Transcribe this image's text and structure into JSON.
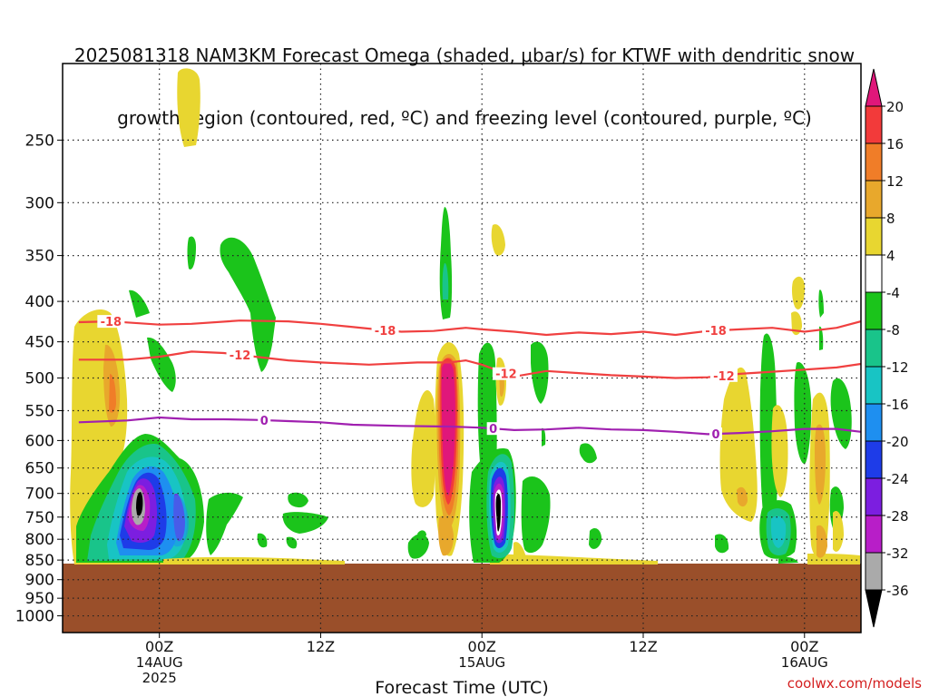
{
  "title_line1": "2025081318 NAM3KM Forecast Omega (shaded, μbar/s) for KTWF with dendritic snow",
  "title_line2": "growth region (contoured, red, ºC) and freezing level (contoured, purple, ºC)",
  "credit": "coolwx.com/models",
  "chart_data": {
    "type": "heatmap",
    "xlabel": "Forecast Time (UTC)",
    "ylabel": "",
    "x_range_hours": [
      -6,
      43.5
    ],
    "y_range_hPa": [
      200,
      1050
    ],
    "y_scale": "log-pressure",
    "grid": true,
    "y_ticks": [
      250,
      300,
      350,
      400,
      450,
      500,
      550,
      600,
      650,
      700,
      750,
      800,
      850,
      900,
      950,
      1000
    ],
    "x_ticks": [
      {
        "hour": 0,
        "line1": "00Z",
        "line2": "14AUG",
        "line3": "2025"
      },
      {
        "hour": 10,
        "line1": "12Z",
        "line2": "",
        "line3": ""
      },
      {
        "hour": 20,
        "line1": "00Z",
        "line2": "15AUG",
        "line3": ""
      },
      {
        "hour": 30,
        "line1": "12Z",
        "line2": "",
        "line3": ""
      },
      {
        "hour": 40,
        "line1": "00Z",
        "line2": "16AUG",
        "line3": ""
      }
    ],
    "colorbar": {
      "labels": [
        "20",
        "16",
        "12",
        "8",
        "4",
        "-4",
        "-8",
        "-12",
        "-16",
        "-20",
        "-24",
        "-28",
        "-32",
        "-36"
      ],
      "colors": [
        "#e0177a",
        "#f23a3a",
        "#f07d28",
        "#e8a82c",
        "#e8d630",
        "#ffffff",
        "#1bc41b",
        "#19c48a",
        "#18c4c4",
        "#1e8ff0",
        "#1e3ce8",
        "#7c1ee0",
        "#b81ec8",
        "#aaaaaa",
        "#000000"
      ]
    },
    "contours": [
      {
        "label": "-18",
        "color": "#f04040",
        "points": [
          [
            -5,
            425
          ],
          [
            -3,
            424
          ],
          [
            0,
            428
          ],
          [
            2,
            427
          ],
          [
            5,
            423
          ],
          [
            8,
            424
          ],
          [
            10,
            427
          ],
          [
            13,
            433
          ],
          [
            15,
            437
          ],
          [
            17,
            436
          ],
          [
            19,
            432
          ],
          [
            20,
            434
          ],
          [
            22,
            437
          ],
          [
            24,
            441
          ],
          [
            26,
            438
          ],
          [
            28,
            440
          ],
          [
            30,
            437
          ],
          [
            32,
            441
          ],
          [
            34,
            436
          ],
          [
            36,
            434
          ],
          [
            38,
            432
          ],
          [
            40,
            437
          ],
          [
            42,
            432
          ],
          [
            43.5,
            424
          ]
        ],
        "label_hours": [
          -3,
          14,
          34.5
        ]
      },
      {
        "label": "-12",
        "color": "#f04040",
        "points": [
          [
            -5,
            474
          ],
          [
            -2,
            474
          ],
          [
            0,
            470
          ],
          [
            2,
            463
          ],
          [
            4,
            465
          ],
          [
            6,
            470
          ],
          [
            8,
            475
          ],
          [
            10,
            478
          ],
          [
            13,
            481
          ],
          [
            16,
            478
          ],
          [
            18,
            478
          ],
          [
            19,
            475
          ],
          [
            20,
            481
          ],
          [
            22,
            498
          ],
          [
            24,
            490
          ],
          [
            26,
            493
          ],
          [
            28,
            496
          ],
          [
            30,
            498
          ],
          [
            32,
            500
          ],
          [
            34,
            499
          ],
          [
            36,
            494
          ],
          [
            38,
            491
          ],
          [
            40,
            488
          ],
          [
            42,
            485
          ],
          [
            43.5,
            480
          ]
        ],
        "label_hours": [
          5,
          21.5,
          35
        ]
      },
      {
        "label": "0",
        "color": "#a020b0",
        "points": [
          [
            -5,
            569
          ],
          [
            -2,
            566
          ],
          [
            0,
            561
          ],
          [
            2,
            564
          ],
          [
            4,
            564
          ],
          [
            6,
            565
          ],
          [
            8,
            567
          ],
          [
            10,
            569
          ],
          [
            12,
            573
          ],
          [
            15,
            575
          ],
          [
            18,
            576
          ],
          [
            20,
            578
          ],
          [
            22,
            582
          ],
          [
            24,
            581
          ],
          [
            26,
            578
          ],
          [
            28,
            581
          ],
          [
            30,
            582
          ],
          [
            32,
            585
          ],
          [
            34,
            589
          ],
          [
            36,
            587
          ],
          [
            38,
            584
          ],
          [
            40,
            580
          ],
          [
            42,
            580
          ],
          [
            43.5,
            585
          ]
        ],
        "label_hours": [
          6.5,
          20.7,
          34.5
        ]
      }
    ]
  }
}
